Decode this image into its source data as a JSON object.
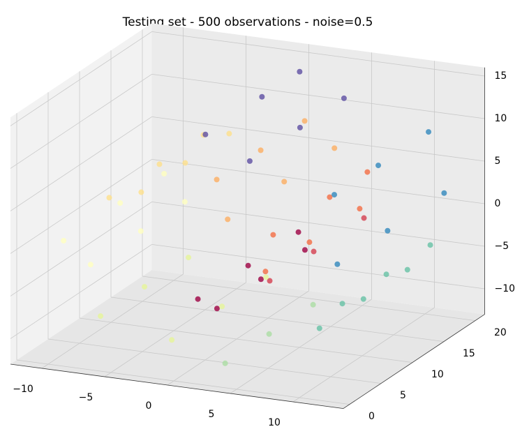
{
  "chart_data": {
    "type": "scatter3d",
    "title": "Testing set - 500 observations - noise=0.5",
    "xlim": [
      -12.5,
      14
    ],
    "ylim": [
      -1,
      21.5
    ],
    "zlim": [
      -13,
      16
    ],
    "xticks": [
      {
        "value": -10,
        "label": "−10"
      },
      {
        "value": -5,
        "label": "−5"
      },
      0,
      5,
      10
    ],
    "yticks": [
      0,
      5,
      10,
      15,
      20
    ],
    "zticks": [
      {
        "value": -10,
        "label": "−10"
      },
      {
        "value": -5,
        "label": "−5"
      },
      0,
      5,
      10,
      15
    ],
    "grid": true,
    "points": {
      "x": [
        0.42,
        0.42,
        0.42,
        2.94,
        2.94,
        2.94,
        5.14,
        5.14,
        5.14,
        6.3,
        6.3,
        6.3,
        5.91,
        5.91,
        5.91,
        3.79,
        3.79,
        3.79,
        0.42,
        0.42,
        0.42,
        -3.59,
        -3.59,
        -3.59,
        -7.14,
        -7.14,
        -7.14,
        -9.27,
        -9.27,
        -9.27,
        -9.12,
        -9.12,
        -9.12,
        -6.83,
        -6.83,
        -6.83,
        -2.16,
        -2.16,
        -2.16,
        3.59,
        3.59,
        3.59,
        8.6,
        8.6,
        8.6,
        11.92,
        11.92,
        11.92,
        12.52,
        12.52,
        12.52,
        10.28,
        10.28,
        10.28,
        5.05,
        5.05,
        5.05,
        0.52,
        0.52,
        0.52
      ],
      "y": [
        3,
        11,
        19,
        1,
        8,
        15,
        5,
        12,
        20,
        2,
        9,
        17,
        4,
        13,
        19,
        1,
        10,
        18,
        6,
        13,
        20,
        2,
        9,
        16,
        4,
        12,
        19,
        1,
        10,
        17,
        5,
        13,
        20,
        2,
        9,
        16,
        4,
        12,
        19,
        1,
        8,
        15,
        6,
        13,
        20,
        3,
        10,
        17,
        1,
        9,
        18,
        5,
        12,
        20,
        2,
        10,
        17,
        4,
        13,
        19
      ],
      "z": [
        -4.78,
        -4.78,
        -4.78,
        -4.41,
        -4.41,
        -4.41,
        -2.69,
        -2.69,
        -2.69,
        0.11,
        0.11,
        0.11,
        3.36,
        3.36,
        3.36,
        6.24,
        6.24,
        6.24,
        7.79,
        7.79,
        7.79,
        7.48,
        7.48,
        7.48,
        5.15,
        5.15,
        5.15,
        1.16,
        1.16,
        1.16,
        -3.59,
        -3.59,
        -3.59,
        -7.71,
        -7.71,
        -7.71,
        -10.58,
        -10.58,
        -10.58,
        -10.72,
        -10.72,
        -10.72,
        -8.08,
        -8.08,
        -8.08,
        -3.05,
        -3.05,
        -3.05,
        2.68,
        2.68,
        2.68,
        8.44,
        8.44,
        8.44,
        12.84,
        12.84,
        12.84,
        14.09,
        14.09,
        14.09
      ],
      "colors": [
        "#9e0142",
        "#9e0142",
        "#9e0142",
        "#9e0142",
        "#9e0142",
        "#9e0142",
        "#d53e4f",
        "#d53e4f",
        "#d53e4f",
        "#f46d43",
        "#f46d43",
        "#f46d43",
        "#f46d43",
        "#f46d43",
        "#f46d43",
        "#fdae61",
        "#fdae61",
        "#fdae61",
        "#fdae61",
        "#fdae61",
        "#fdae61",
        "#fee08b",
        "#fee08b",
        "#fee08b",
        "#fee08b",
        "#fee08b",
        "#fee08b",
        "#ffffbf",
        "#ffffbf",
        "#ffffbf",
        "#ffffbf",
        "#ffffbf",
        "#ffffbf",
        "#e6f598",
        "#e6f598",
        "#e6f598",
        "#e6f598",
        "#e6f598",
        "#e6f598",
        "#abdda4",
        "#abdda4",
        "#abdda4",
        "#66c2a5",
        "#66c2a5",
        "#66c2a5",
        "#66c2a5",
        "#66c2a5",
        "#66c2a5",
        "#3288bd",
        "#3288bd",
        "#3288bd",
        "#3288bd",
        "#3288bd",
        "#3288bd",
        "#5e4fa2",
        "#5e4fa2",
        "#5e4fa2",
        "#5e4fa2",
        "#5e4fa2",
        "#5e4fa2"
      ]
    }
  }
}
